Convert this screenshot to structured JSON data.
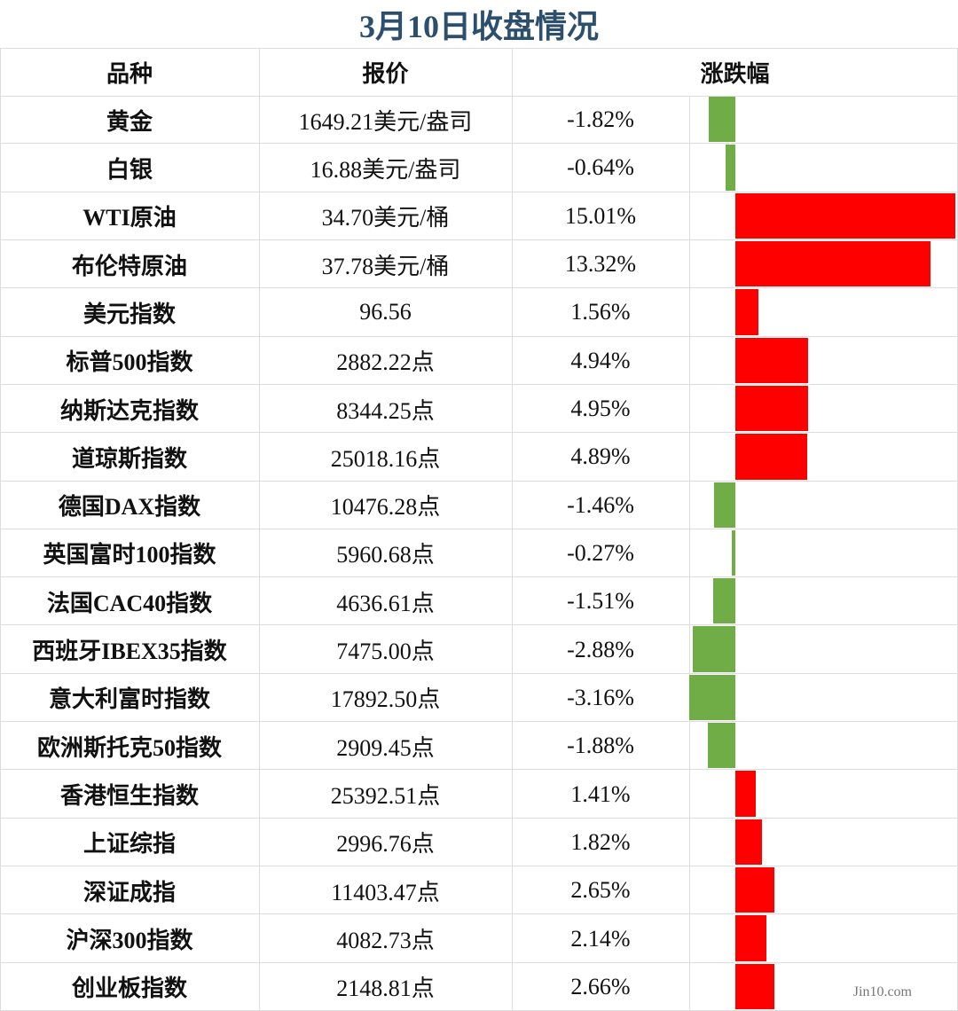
{
  "title": "3月10日收盘情况",
  "headers": [
    "品种",
    "报价",
    "涨跌幅"
  ],
  "rows": [
    {
      "name": "黄金",
      "price": "1649.21美元/盎司",
      "change": -1.82,
      "change_label": "-1.82%"
    },
    {
      "name": "白银",
      "price": "16.88美元/盎司",
      "change": -0.64,
      "change_label": "-0.64%"
    },
    {
      "name": "WTI原油",
      "price": "34.70美元/桶",
      "change": 15.01,
      "change_label": "15.01%"
    },
    {
      "name": "布伦特原油",
      "price": "37.78美元/桶",
      "change": 13.32,
      "change_label": "13.32%"
    },
    {
      "name": "美元指数",
      "price": "96.56",
      "change": 1.56,
      "change_label": "1.56%"
    },
    {
      "name": "标普500指数",
      "price": "2882.22点",
      "change": 4.94,
      "change_label": "4.94%"
    },
    {
      "name": "纳斯达克指数",
      "price": "8344.25点",
      "change": 4.95,
      "change_label": "4.95%"
    },
    {
      "name": "道琼斯指数",
      "price": "25018.16点",
      "change": 4.89,
      "change_label": "4.89%"
    },
    {
      "name": "德国DAX指数",
      "price": "10476.28点",
      "change": -1.46,
      "change_label": "-1.46%"
    },
    {
      "name": "英国富时100指数",
      "price": "5960.68点",
      "change": -0.27,
      "change_label": "-0.27%"
    },
    {
      "name": "法国CAC40指数",
      "price": "4636.61点",
      "change": -1.51,
      "change_label": "-1.51%"
    },
    {
      "name": "西班牙IBEX35指数",
      "price": "7475.00点",
      "change": -2.88,
      "change_label": "-2.88%"
    },
    {
      "name": "意大利富时指数",
      "price": "17892.50点",
      "change": -3.16,
      "change_label": "-3.16%"
    },
    {
      "name": "欧洲斯托克50指数",
      "price": "2909.45点",
      "change": -1.88,
      "change_label": "-1.88%"
    },
    {
      "name": "香港恒生指数",
      "price": "25392.51点",
      "change": 1.41,
      "change_label": "1.41%"
    },
    {
      "name": "上证综指",
      "price": "2996.76点",
      "change": 1.82,
      "change_label": "1.82%"
    },
    {
      "name": "深证成指",
      "price": "11403.47点",
      "change": 2.65,
      "change_label": "2.65%"
    },
    {
      "name": "沪深300指数",
      "price": "4082.73点",
      "change": 2.14,
      "change_label": "2.14%"
    },
    {
      "name": "创业板指数",
      "price": "2148.81点",
      "change": 2.66,
      "change_label": "2.66%"
    }
  ],
  "watermark": "Jin10.com"
}
